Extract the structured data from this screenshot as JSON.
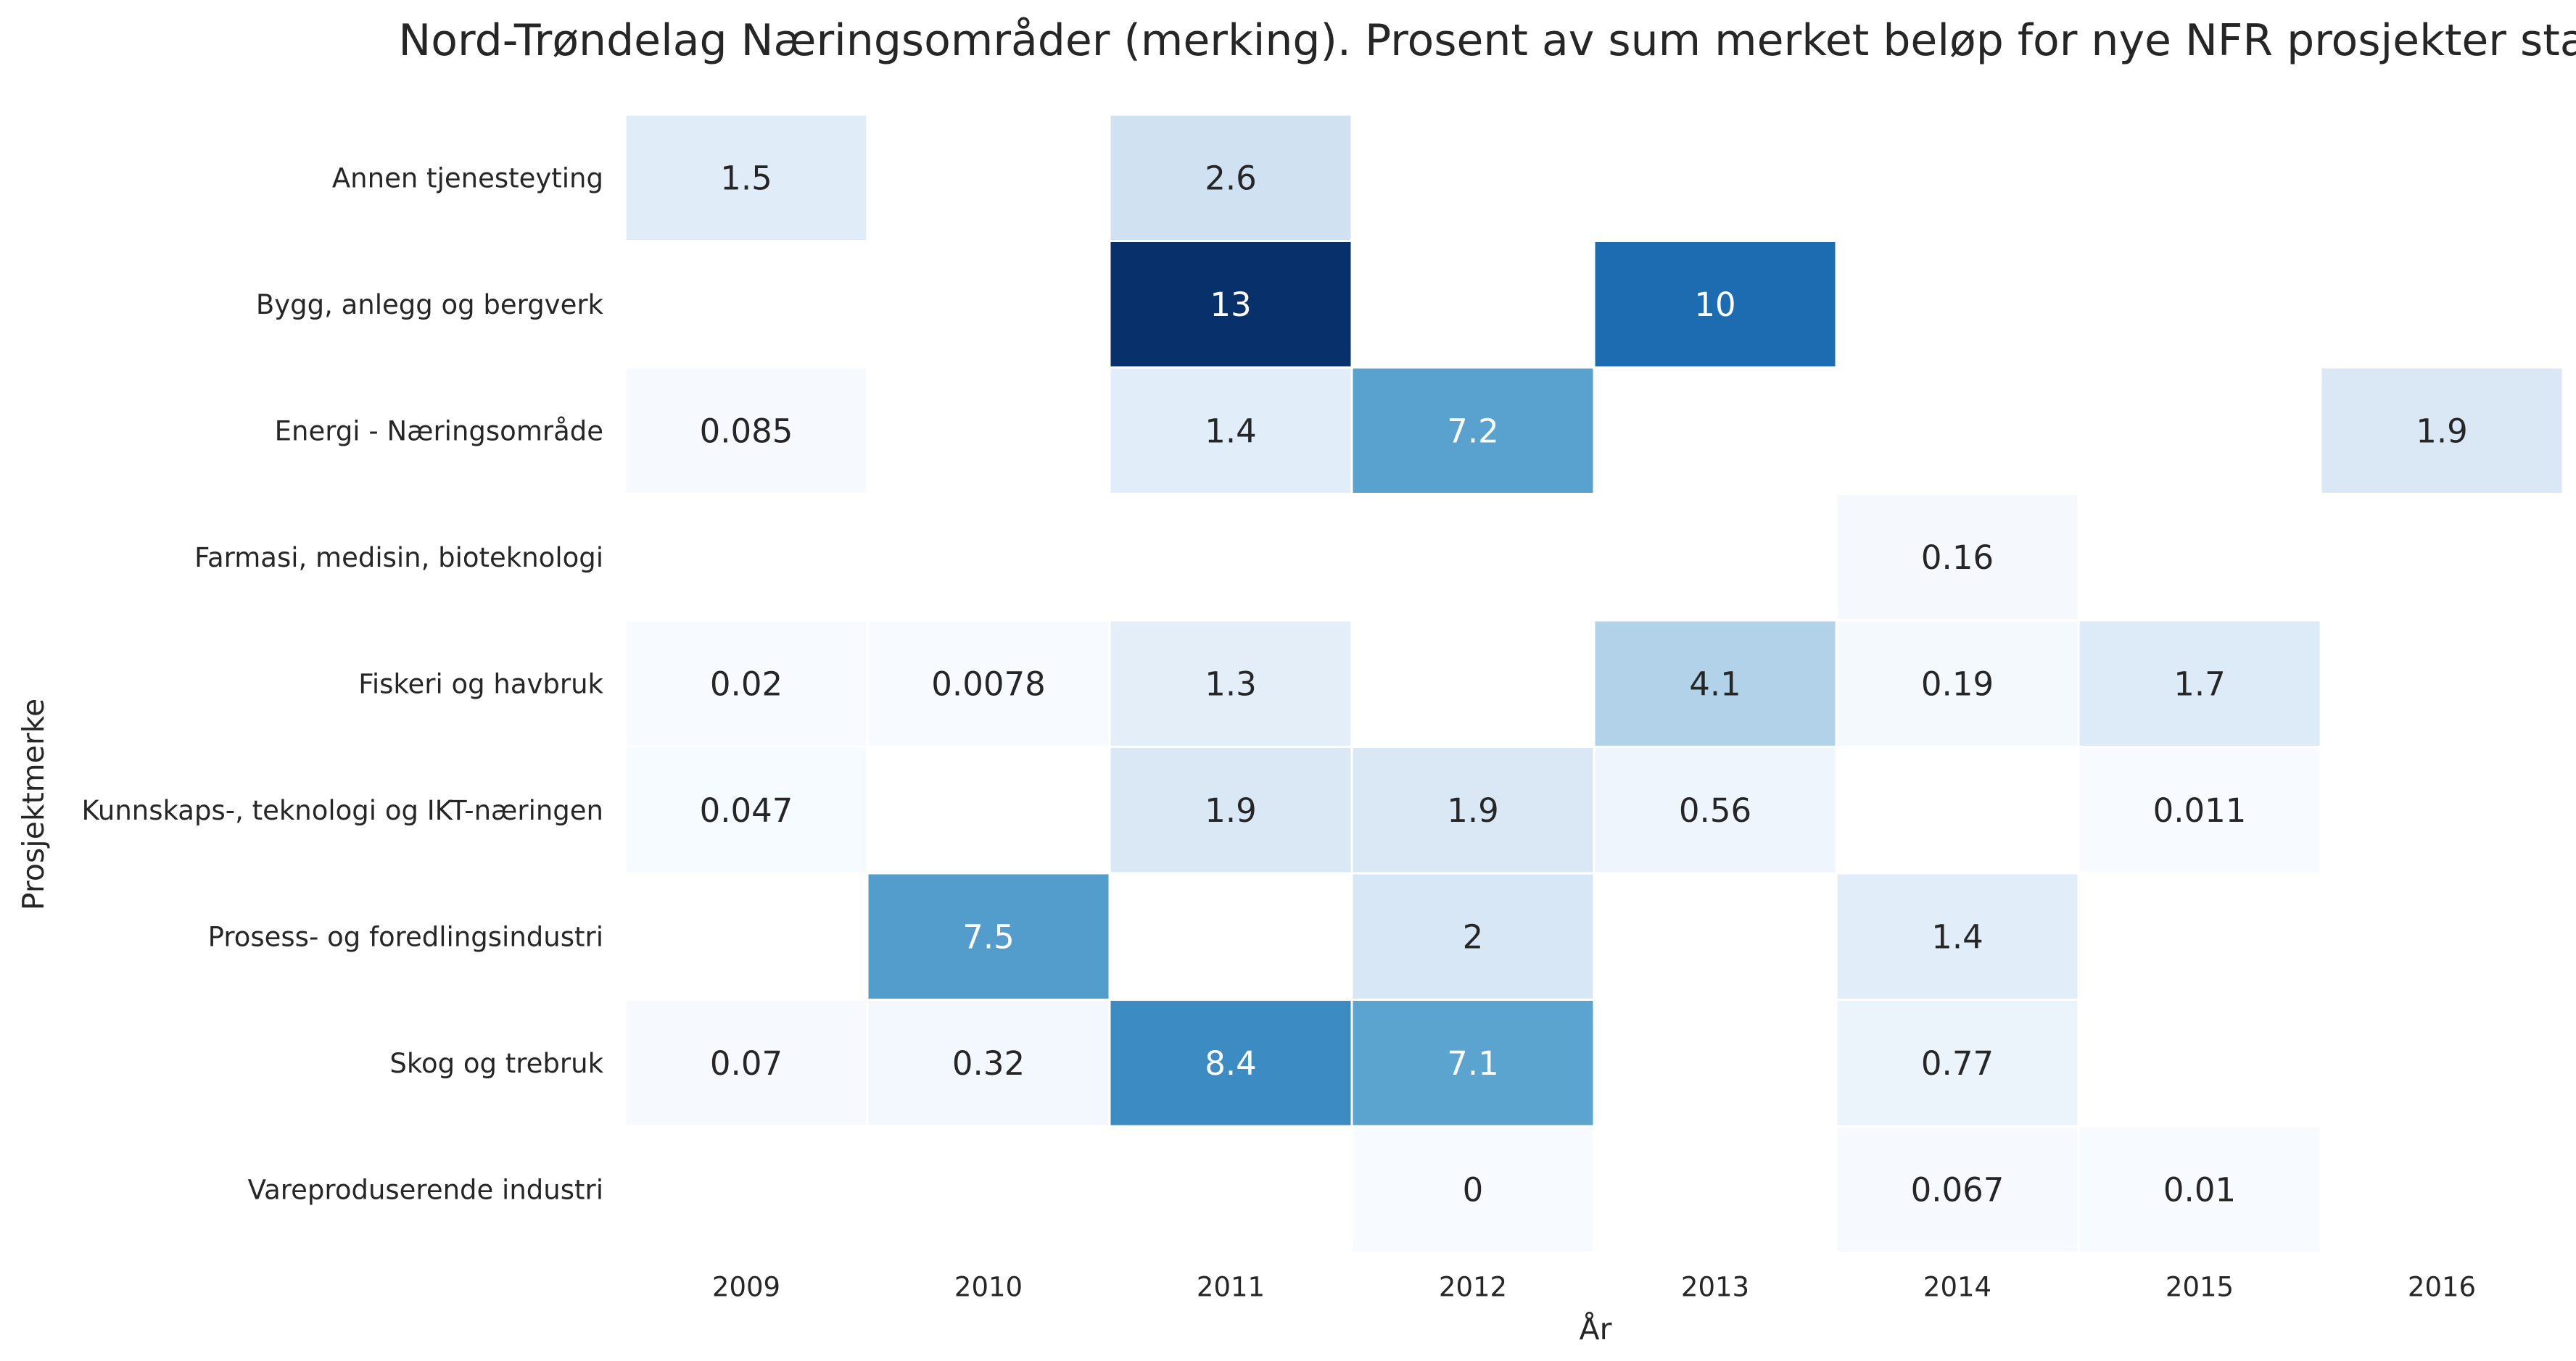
{
  "chart_data": {
    "type": "heatmap",
    "title": "Nord-Trøndelag Næringsområder (merking). Prosent av sum merket beløp for nye NFR prosjekter startet i året",
    "xlabel": "År",
    "ylabel": "Prosjektmerke",
    "x_categories": [
      "2009",
      "2010",
      "2011",
      "2012",
      "2013",
      "2014",
      "2015",
      "2016"
    ],
    "y_categories": [
      "Annen tjenesteyting",
      "Bygg, anlegg og bergverk",
      "Energi - Næringsområde",
      "Farmasi, medisin, bioteknologi",
      "Fiskeri og havbruk",
      "Kunnskaps-, teknologi og IKT-næringen",
      "Prosess- og foredlingsindustri",
      "Skog og trebruk",
      "Vareproduserende industri"
    ],
    "values": [
      [
        1.5,
        null,
        2.6,
        null,
        null,
        null,
        null,
        null
      ],
      [
        null,
        null,
        13,
        null,
        10,
        null,
        null,
        null
      ],
      [
        0.085,
        null,
        1.4,
        7.2,
        null,
        null,
        null,
        1.9
      ],
      [
        null,
        null,
        null,
        null,
        null,
        0.16,
        null,
        null
      ],
      [
        0.02,
        0.0078,
        1.3,
        null,
        4.1,
        0.19,
        1.7,
        null
      ],
      [
        0.047,
        null,
        1.9,
        1.9,
        0.56,
        null,
        0.011,
        null
      ],
      [
        null,
        7.5,
        null,
        2,
        null,
        1.4,
        null,
        null
      ],
      [
        0.07,
        0.32,
        8.4,
        7.1,
        null,
        0.77,
        null,
        null
      ],
      [
        null,
        null,
        null,
        0,
        null,
        0.067,
        0.01,
        null
      ]
    ],
    "labels": [
      [
        "1.5",
        "",
        "2.6",
        "",
        "",
        "",
        "",
        ""
      ],
      [
        "",
        "",
        "13",
        "",
        "10",
        "",
        "",
        ""
      ],
      [
        "0.085",
        "",
        "1.4",
        "7.2",
        "",
        "",
        "",
        "1.9"
      ],
      [
        "",
        "",
        "",
        "",
        "",
        "0.16",
        "",
        ""
      ],
      [
        "0.02",
        "0.0078",
        "1.3",
        "",
        "4.1",
        "0.19",
        "1.7",
        ""
      ],
      [
        "0.047",
        "",
        "1.9",
        "1.9",
        "0.56",
        "",
        "0.011",
        ""
      ],
      [
        "",
        "7.5",
        "",
        "2",
        "",
        "1.4",
        "",
        ""
      ],
      [
        "0.07",
        "0.32",
        "8.4",
        "7.1",
        "",
        "0.77",
        "",
        ""
      ],
      [
        "",
        "",
        "",
        "0",
        "",
        "0.067",
        "0.01",
        ""
      ]
    ],
    "colormap": "Blues",
    "color_range": [
      0,
      13
    ],
    "colors": {
      "low": "#f7fbff",
      "high": "#08306b",
      "text_dark": "#262626",
      "text_light": "#ffffff"
    },
    "grid": false,
    "colorbar": false
  }
}
